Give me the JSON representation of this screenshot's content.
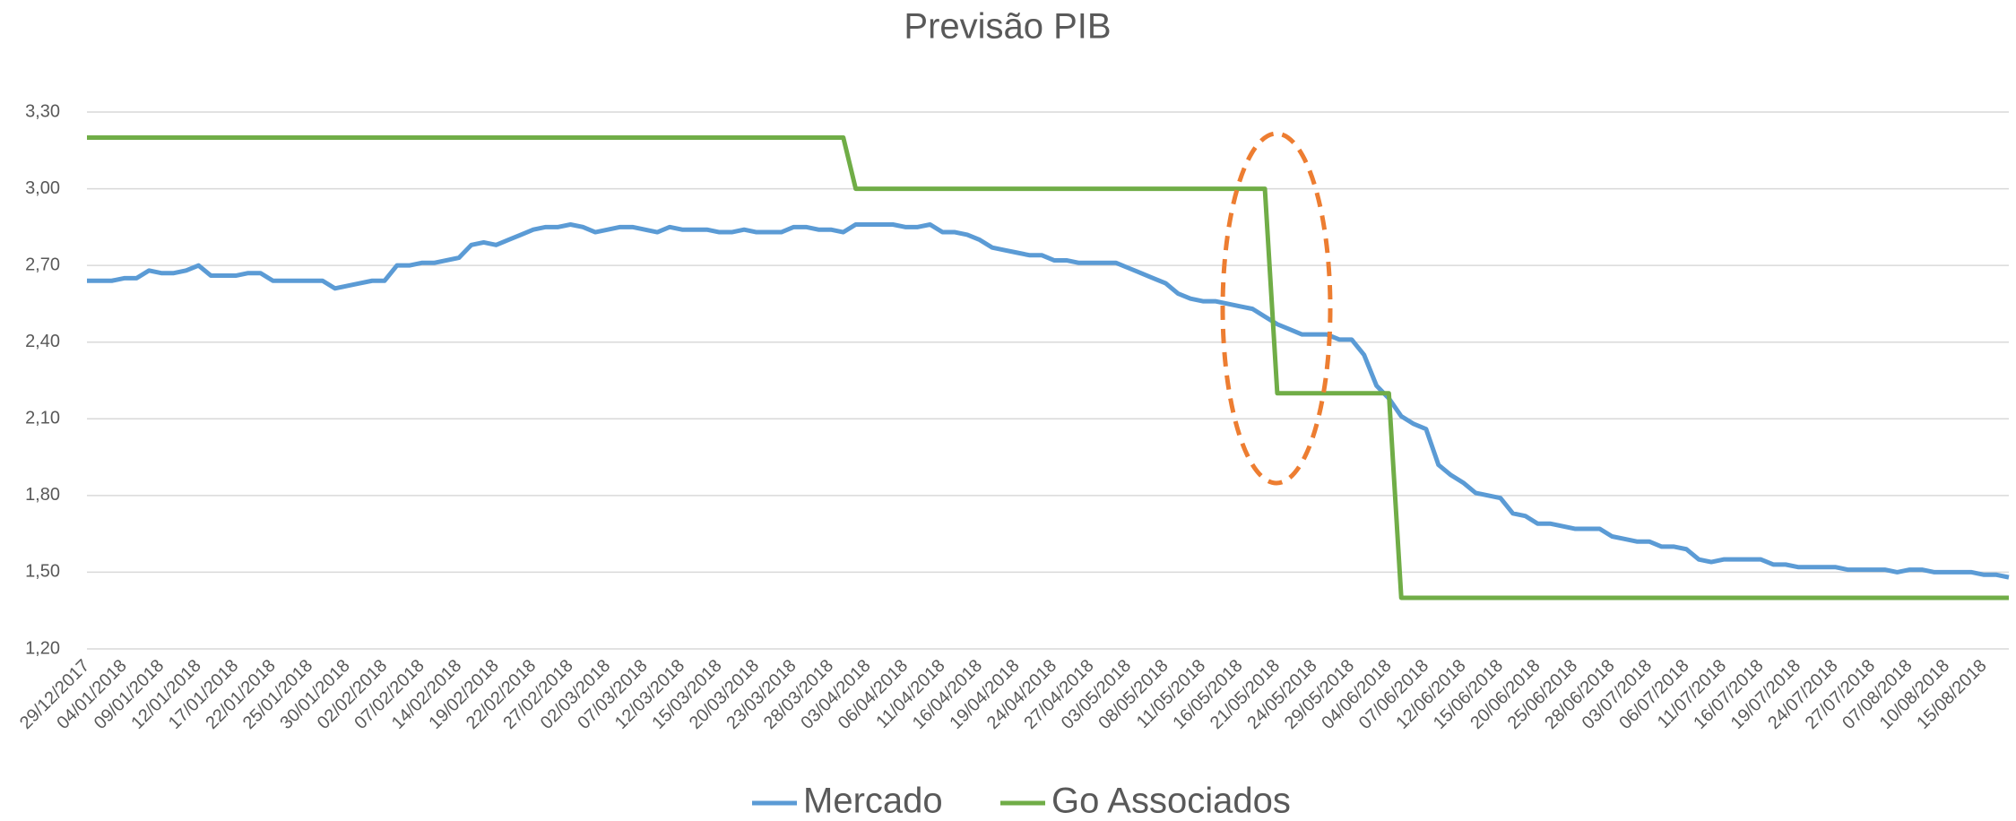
{
  "chart_data": {
    "type": "line",
    "title": "Previsão PIB",
    "categories": [
      "29/12/2017",
      null,
      null,
      "04/01/2018",
      null,
      null,
      "09/01/2018",
      null,
      null,
      "12/01/2018",
      null,
      null,
      "17/01/2018",
      null,
      null,
      "22/01/2018",
      null,
      null,
      "25/01/2018",
      null,
      null,
      "30/01/2018",
      null,
      null,
      "02/02/2018",
      null,
      null,
      "07/02/2018",
      null,
      null,
      "14/02/2018",
      null,
      null,
      "19/02/2018",
      null,
      null,
      "22/02/2018",
      null,
      null,
      "27/02/2018",
      null,
      null,
      "02/03/2018",
      null,
      null,
      "07/03/2018",
      null,
      null,
      "12/03/2018",
      null,
      null,
      "15/03/2018",
      null,
      null,
      "20/03/2018",
      null,
      null,
      "23/03/2018",
      null,
      null,
      "28/03/2018",
      null,
      null,
      "03/04/2018",
      null,
      null,
      "06/04/2018",
      null,
      null,
      "11/04/2018",
      null,
      null,
      "16/04/2018",
      null,
      null,
      "19/04/2018",
      null,
      null,
      "24/04/2018",
      null,
      null,
      "27/04/2018",
      null,
      null,
      "03/05/2018",
      null,
      null,
      "08/05/2018",
      null,
      null,
      "11/05/2018",
      null,
      null,
      "16/05/2018",
      null,
      null,
      "21/05/2018",
      null,
      null,
      "24/05/2018",
      null,
      null,
      "29/05/2018",
      null,
      null,
      "04/06/2018",
      null,
      null,
      "07/06/2018",
      null,
      null,
      "12/06/2018",
      null,
      null,
      "15/06/2018",
      null,
      null,
      "20/06/2018",
      null,
      null,
      "25/06/2018",
      null,
      null,
      "28/06/2018",
      null,
      null,
      "03/07/2018",
      null,
      null,
      "06/07/2018",
      null,
      null,
      "11/07/2018",
      null,
      null,
      "16/07/2018",
      null,
      null,
      "19/07/2018",
      null,
      null,
      "24/07/2018",
      null,
      null,
      "27/07/2018",
      null,
      null,
      "07/08/2018",
      null,
      null,
      "10/08/2018",
      null,
      null,
      "15/08/2018",
      null,
      null
    ],
    "series": [
      {
        "name": "Mercado",
        "color": "#5b9bd5",
        "values": [
          2.64,
          2.64,
          2.64,
          2.65,
          2.65,
          2.68,
          2.67,
          2.67,
          2.68,
          2.7,
          2.66,
          2.66,
          2.66,
          2.67,
          2.67,
          2.64,
          2.64,
          2.64,
          2.64,
          2.64,
          2.61,
          2.62,
          2.63,
          2.64,
          2.64,
          2.7,
          2.7,
          2.71,
          2.71,
          2.72,
          2.73,
          2.78,
          2.79,
          2.78,
          2.8,
          2.82,
          2.84,
          2.85,
          2.85,
          2.86,
          2.85,
          2.83,
          2.84,
          2.85,
          2.85,
          2.84,
          2.83,
          2.85,
          2.84,
          2.84,
          2.84,
          2.83,
          2.83,
          2.84,
          2.83,
          2.83,
          2.83,
          2.85,
          2.85,
          2.84,
          2.84,
          2.83,
          2.86,
          2.86,
          2.86,
          2.86,
          2.85,
          2.85,
          2.86,
          2.83,
          2.83,
          2.82,
          2.8,
          2.77,
          2.76,
          2.75,
          2.74,
          2.74,
          2.72,
          2.72,
          2.71,
          2.71,
          2.71,
          2.71,
          2.69,
          2.67,
          2.65,
          2.63,
          2.59,
          2.57,
          2.56,
          2.56,
          2.55,
          2.54,
          2.53,
          2.5,
          2.47,
          2.45,
          2.43,
          2.43,
          2.43,
          2.41,
          2.41,
          2.35,
          2.23,
          2.18,
          2.11,
          2.08,
          2.06,
          1.92,
          1.88,
          1.85,
          1.81,
          1.8,
          1.79,
          1.73,
          1.72,
          1.69,
          1.69,
          1.68,
          1.67,
          1.67,
          1.67,
          1.64,
          1.63,
          1.62,
          1.62,
          1.6,
          1.6,
          1.59,
          1.55,
          1.54,
          1.55,
          1.55,
          1.55,
          1.55,
          1.53,
          1.53,
          1.52,
          1.52,
          1.52,
          1.52,
          1.51,
          1.51,
          1.51,
          1.51,
          1.5,
          1.51,
          1.51,
          1.5,
          1.5,
          1.5,
          1.5,
          1.49,
          1.49,
          1.48
        ]
      },
      {
        "name": "Go Associados",
        "color": "#70ad47",
        "values": [
          3.2,
          3.2,
          3.2,
          3.2,
          3.2,
          3.2,
          3.2,
          3.2,
          3.2,
          3.2,
          3.2,
          3.2,
          3.2,
          3.2,
          3.2,
          3.2,
          3.2,
          3.2,
          3.2,
          3.2,
          3.2,
          3.2,
          3.2,
          3.2,
          3.2,
          3.2,
          3.2,
          3.2,
          3.2,
          3.2,
          3.2,
          3.2,
          3.2,
          3.2,
          3.2,
          3.2,
          3.2,
          3.2,
          3.2,
          3.2,
          3.2,
          3.2,
          3.2,
          3.2,
          3.2,
          3.2,
          3.2,
          3.2,
          3.2,
          3.2,
          3.2,
          3.2,
          3.2,
          3.2,
          3.2,
          3.2,
          3.2,
          3.2,
          3.2,
          3.2,
          3.2,
          3.2,
          3.0,
          3.0,
          3.0,
          3.0,
          3.0,
          3.0,
          3.0,
          3.0,
          3.0,
          3.0,
          3.0,
          3.0,
          3.0,
          3.0,
          3.0,
          3.0,
          3.0,
          3.0,
          3.0,
          3.0,
          3.0,
          3.0,
          3.0,
          3.0,
          3.0,
          3.0,
          3.0,
          3.0,
          3.0,
          3.0,
          3.0,
          3.0,
          3.0,
          3.0,
          2.2,
          2.2,
          2.2,
          2.2,
          2.2,
          2.2,
          2.2,
          2.2,
          2.2,
          2.2,
          1.4,
          1.4,
          1.4,
          1.4,
          1.4,
          1.4,
          1.4,
          1.4,
          1.4,
          1.4,
          1.4,
          1.4,
          1.4,
          1.4,
          1.4,
          1.4,
          1.4,
          1.4,
          1.4,
          1.4,
          1.4,
          1.4,
          1.4,
          1.4,
          1.4,
          1.4,
          1.4,
          1.4,
          1.4,
          1.4,
          1.4,
          1.4,
          1.4,
          1.4,
          1.4,
          1.4,
          1.4,
          1.4,
          1.4,
          1.4,
          1.4,
          1.4,
          1.4,
          1.4,
          1.4,
          1.4,
          1.4,
          1.4,
          1.4,
          1.4
        ]
      }
    ],
    "ylim": [
      1.2,
      3.3
    ],
    "yticks": [
      {
        "value": 1.2,
        "label": "1,20"
      },
      {
        "value": 1.5,
        "label": "1,50"
      },
      {
        "value": 1.8,
        "label": "1,80"
      },
      {
        "value": 2.1,
        "label": "2,10"
      },
      {
        "value": 2.4,
        "label": "2,40"
      },
      {
        "value": 2.7,
        "label": "2,70"
      },
      {
        "value": 3.0,
        "label": "3,00"
      },
      {
        "value": 3.3,
        "label": "3,30"
      }
    ],
    "grid": true,
    "legend": "bottom"
  }
}
